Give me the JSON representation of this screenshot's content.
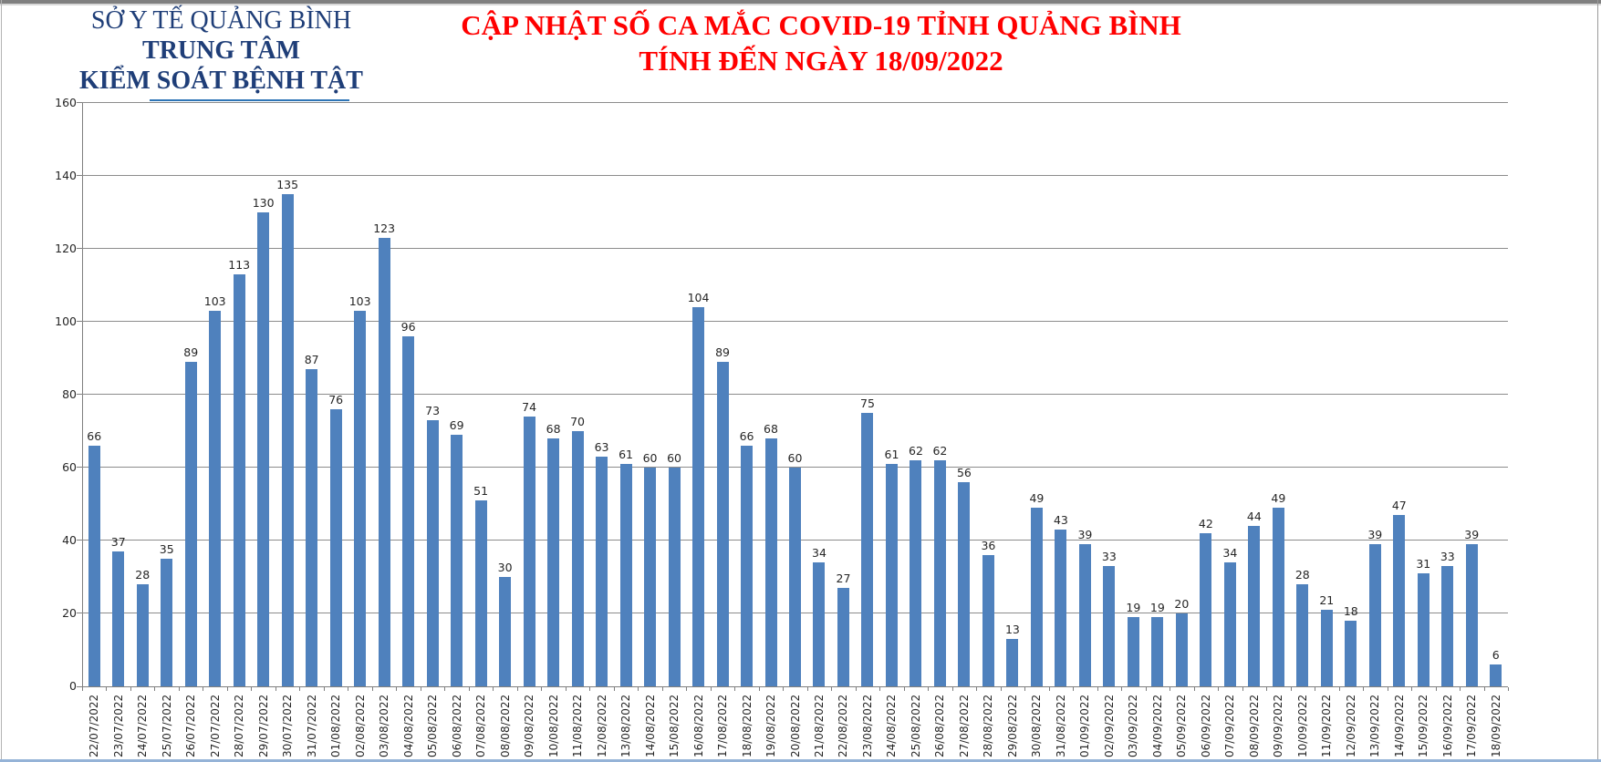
{
  "page": {
    "background": "#FFFFFF",
    "top_border_color": "#808080",
    "bottom_border_color": "#95B3D7"
  },
  "header": {
    "org_line1": "SỞ Y TẾ QUẢNG BÌNH",
    "org_line2": "TRUNG TÂM",
    "org_line3": "KIỂM SOÁT BỆNH TẬT",
    "org_color": "#1F3E78",
    "org_underline_color": "#2E75B6",
    "title_line1": "CẬP NHẬT SỐ CA MẮC COVID-19 TỈNH QUẢNG BÌNH",
    "title_line2": "TÍNH ĐẾN NGÀY 18/09/2022",
    "title_color": "#FF0000"
  },
  "chart_data": {
    "type": "bar",
    "title": "CẬP NHẬT SỐ CA MẮC COVID-19 TỈNH QUẢNG BÌNH TÍNH ĐẾN NGÀY 18/09/2022",
    "xlabel": "",
    "ylabel": "",
    "ylim": [
      0,
      160
    ],
    "ytick_step": 20,
    "yticks": [
      0,
      20,
      40,
      60,
      80,
      100,
      120,
      140,
      160
    ],
    "grid": true,
    "legend": false,
    "data_labels": true,
    "bar_color": "#4F81BD",
    "gridline_color": "#8C8C8C",
    "axis_color": "#7F7F7F",
    "label_color": "#262626",
    "categories": [
      "22/07/2022",
      "23/07/2022",
      "24/07/2022",
      "25/07/2022",
      "26/07/2022",
      "27/07/2022",
      "28/07/2022",
      "29/07/2022",
      "30/07/2022",
      "31/07/2022",
      "01/08/2022",
      "02/08/2022",
      "03/08/2022",
      "04/08/2022",
      "05/08/2022",
      "06/08/2022",
      "07/08/2022",
      "08/08/2022",
      "09/08/2022",
      "10/08/2022",
      "11/08/2022",
      "12/08/2022",
      "13/08/2022",
      "14/08/2022",
      "15/08/2022",
      "16/08/2022",
      "17/08/2022",
      "18/08/2022",
      "19/08/2022",
      "20/08/2022",
      "21/08/2022",
      "22/08/2022",
      "23/08/2022",
      "24/08/2022",
      "25/08/2022",
      "26/08/2022",
      "27/08/2022",
      "28/08/2022",
      "29/08/2022",
      "30/08/2022",
      "31/08/2022",
      "01/09/2022",
      "02/09/2022",
      "03/09/2022",
      "04/09/2022",
      "05/09/2022",
      "06/09/2022",
      "07/09/2022",
      "08/09/2022",
      "09/09/2022",
      "10/09/2022",
      "11/09/2022",
      "12/09/2022",
      "13/09/2022",
      "14/09/2022",
      "15/09/2022",
      "16/09/2022",
      "17/09/2022",
      "18/09/2022"
    ],
    "values": [
      66,
      37,
      28,
      35,
      89,
      103,
      113,
      130,
      135,
      87,
      76,
      103,
      123,
      96,
      73,
      69,
      51,
      30,
      74,
      68,
      70,
      63,
      61,
      60,
      60,
      104,
      89,
      66,
      68,
      60,
      34,
      27,
      75,
      61,
      62,
      62,
      56,
      36,
      13,
      49,
      43,
      39,
      33,
      19,
      19,
      20,
      42,
      34,
      44,
      49,
      28,
      21,
      18,
      39,
      47,
      31,
      33,
      39,
      6
    ]
  }
}
